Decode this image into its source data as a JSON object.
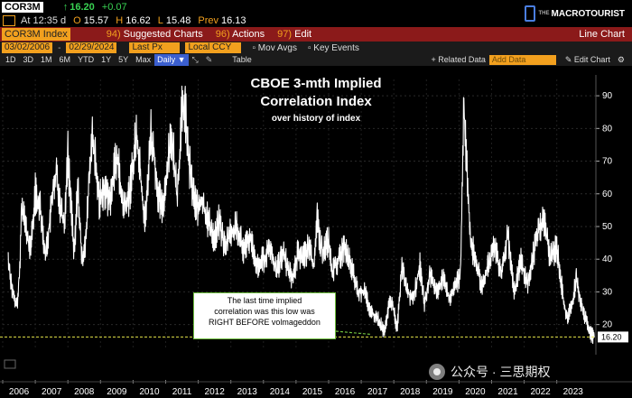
{
  "header": {
    "ticker": "COR3M",
    "arrow": "↑",
    "last": "16.20",
    "change": "+0.07",
    "time_label": "At 12:35 d",
    "open_label": "O",
    "open": "15.57",
    "high_label": "H",
    "high": "16.62",
    "low_label": "L",
    "low": "15.48",
    "prev_label": "Prev",
    "prev": "16.13",
    "logo_small": "THE",
    "logo_main": "MACROTOURIST"
  },
  "toolbar": {
    "security": "COR3M Index",
    "suggested_num": "94)",
    "suggested": "Suggested Charts",
    "actions_num": "96)",
    "actions": "Actions",
    "edit_num": "97)",
    "edit": "Edit",
    "chart_type": "Line Chart"
  },
  "settings": {
    "start_date": "03/02/2006",
    "end_date": "02/29/2024",
    "field": "Last Px",
    "currency": "Local CCY",
    "mov_avgs": "Mov Avgs",
    "key_events": "Key Events"
  },
  "ranges": {
    "items": [
      "1D",
      "3D",
      "1M",
      "6M",
      "YTD",
      "1Y",
      "5Y",
      "Max"
    ],
    "period": "Daily",
    "table": "Table",
    "related": "+ Related Data",
    "add_data": "Add Data",
    "edit_chart": "Edit Chart"
  },
  "chart_data": {
    "type": "line",
    "title": "CBOE 3-mth Implied",
    "title2": "Correlation Index",
    "subtitle": "over history of index",
    "x_ticks": [
      "2006",
      "2007",
      "2008",
      "2009",
      "2010",
      "2011",
      "2012",
      "2013",
      "2014",
      "2015",
      "2016",
      "2017",
      "2018",
      "2019",
      "2020",
      "2021",
      "2022",
      "2023"
    ],
    "y_ticks": [
      20,
      30,
      40,
      50,
      60,
      70,
      80,
      90
    ],
    "ylim": [
      13,
      95
    ],
    "last_value": "16.20",
    "threshold": 16.2,
    "annotation": [
      "The last time implied",
      "correlation was this low was",
      "RIGHT BEFORE volmageddon"
    ],
    "series": [
      {
        "name": "COR3M Index",
        "x": [
          2006.17,
          2006.3,
          2006.42,
          2006.5,
          2006.58,
          2006.7,
          2006.85,
          2007.0,
          2007.15,
          2007.3,
          2007.45,
          2007.55,
          2007.65,
          2007.75,
          2007.9,
          2008.0,
          2008.1,
          2008.2,
          2008.3,
          2008.45,
          2008.55,
          2008.65,
          2008.75,
          2008.85,
          2008.95,
          2009.1,
          2009.3,
          2009.5,
          2009.7,
          2009.9,
          2010.1,
          2010.25,
          2010.35,
          2010.45,
          2010.55,
          2010.65,
          2010.75,
          2010.9,
          2011.05,
          2011.2,
          2011.35,
          2011.5,
          2011.6,
          2011.68,
          2011.8,
          2011.95,
          2012.1,
          2012.3,
          2012.5,
          2012.65,
          2012.8,
          2013.0,
          2013.2,
          2013.4,
          2013.6,
          2013.8,
          2014.0,
          2014.2,
          2014.4,
          2014.6,
          2014.8,
          2014.9,
          2015.05,
          2015.2,
          2015.4,
          2015.55,
          2015.65,
          2015.8,
          2016.0,
          2016.1,
          2016.3,
          2016.5,
          2016.7,
          2016.9,
          2017.1,
          2017.3,
          2017.5,
          2017.7,
          2017.9,
          2018.0,
          2018.1,
          2018.25,
          2018.4,
          2018.6,
          2018.8,
          2018.95,
          2019.1,
          2019.3,
          2019.5,
          2019.7,
          2019.9,
          2020.05,
          2020.15,
          2020.2,
          2020.35,
          2020.5,
          2020.7,
          2020.9,
          2021.1,
          2021.3,
          2021.5,
          2021.7,
          2021.9,
          2022.1,
          2022.3,
          2022.45,
          2022.6,
          2022.8,
          2023.0,
          2023.2,
          2023.3,
          2023.45,
          2023.6,
          2023.8,
          2023.95,
          2024.05,
          2024.16
        ],
        "values": [
          40,
          30,
          25,
          32,
          55,
          50,
          42,
          60,
          55,
          40,
          52,
          62,
          68,
          56,
          50,
          72,
          55,
          42,
          62,
          38,
          45,
          65,
          76,
          70,
          58,
          62,
          58,
          72,
          56,
          60,
          78,
          63,
          50,
          62,
          79,
          70,
          60,
          55,
          68,
          78,
          58,
          85,
          86,
          74,
          62,
          56,
          58,
          52,
          46,
          52,
          44,
          48,
          50,
          42,
          47,
          38,
          40,
          44,
          36,
          42,
          36,
          33,
          42,
          40,
          44,
          36,
          52,
          42,
          46,
          36,
          40,
          44,
          38,
          30,
          30,
          24,
          22,
          18,
          28,
          24,
          18,
          38,
          30,
          28,
          38,
          26,
          36,
          30,
          34,
          28,
          32,
          36,
          88,
          75,
          46,
          40,
          32,
          38,
          44,
          36,
          48,
          30,
          40,
          32,
          42,
          50,
          52,
          40,
          44,
          28,
          22,
          25,
          34,
          24,
          20,
          17,
          16.2
        ]
      }
    ]
  },
  "watermark": "公众号 · 三思期权"
}
